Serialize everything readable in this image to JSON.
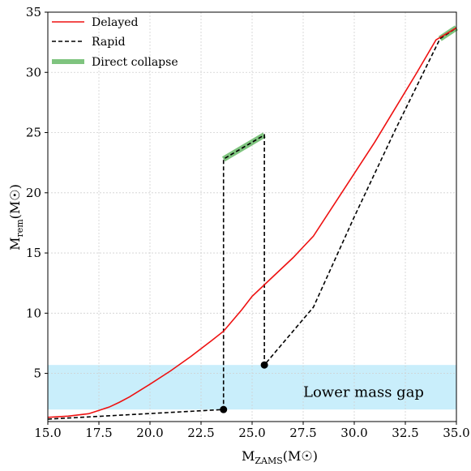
{
  "chart_data": {
    "type": "line",
    "xlabel": {
      "main": "M",
      "sub": "ZAMS",
      "unit": "(M",
      "unit_close": ")"
    },
    "ylabel": {
      "main": "M",
      "sub": "rem",
      "unit": "(M",
      "unit_close": ")"
    },
    "xlim": [
      15.0,
      35.0
    ],
    "ylim": [
      1.0,
      35.0
    ],
    "x_ticks": [
      15.0,
      17.5,
      20.0,
      22.5,
      25.0,
      27.5,
      30.0,
      32.5,
      35.0
    ],
    "x_tick_labels": [
      "15.0",
      "17.5",
      "20.0",
      "22.5",
      "25.0",
      "27.5",
      "30.0",
      "32.5",
      "35.0"
    ],
    "y_ticks": [
      5,
      10,
      15,
      20,
      25,
      30,
      35
    ],
    "y_tick_labels": [
      "5",
      "10",
      "15",
      "20",
      "25",
      "30",
      "35"
    ],
    "grid": true,
    "legend_position": "top-left",
    "series": [
      {
        "name": "Delayed",
        "style": "solid",
        "color": "#ee1111",
        "x": [
          15.0,
          16.0,
          17.0,
          18.0,
          18.5,
          19.0,
          20.0,
          21.0,
          22.0,
          23.0,
          23.6,
          24.0,
          24.5,
          25.0,
          26.0,
          27.0,
          28.0,
          29.0,
          30.0,
          31.0,
          32.0,
          33.0,
          34.0,
          35.0
        ],
        "y": [
          1.35,
          1.45,
          1.65,
          2.2,
          2.6,
          3.05,
          4.1,
          5.2,
          6.4,
          7.7,
          8.5,
          9.3,
          10.3,
          11.4,
          13.0,
          14.6,
          16.4,
          19.0,
          21.6,
          24.2,
          27.0,
          29.8,
          32.7,
          33.7
        ]
      },
      {
        "name": "Rapid",
        "style": "dashed",
        "color": "#000000",
        "x": [
          15.0,
          23.6,
          23.6,
          25.6,
          25.6,
          28.0,
          30.0,
          32.0,
          34.2,
          35.0
        ],
        "y": [
          1.2,
          2.0,
          22.8,
          24.8,
          5.7,
          10.5,
          18.0,
          25.2,
          32.8,
          33.7
        ]
      },
      {
        "name": "Direct collapse",
        "style": "thick",
        "color": "#7fc47f",
        "segments": [
          {
            "x": [
              23.6,
              25.6
            ],
            "y": [
              22.8,
              24.8
            ]
          },
          {
            "x": [
              34.2,
              35.0
            ],
            "y": [
              32.8,
              33.7
            ]
          }
        ]
      }
    ],
    "markers": [
      {
        "x": 23.6,
        "y": 2.0
      },
      {
        "x": 25.6,
        "y": 5.7
      }
    ],
    "bands": [
      {
        "y_from": 2.0,
        "y_to": 5.7,
        "color": "#c9eefb",
        "label": "Lower mass gap",
        "label_x": 27.5,
        "label_y": 3.45
      }
    ]
  }
}
